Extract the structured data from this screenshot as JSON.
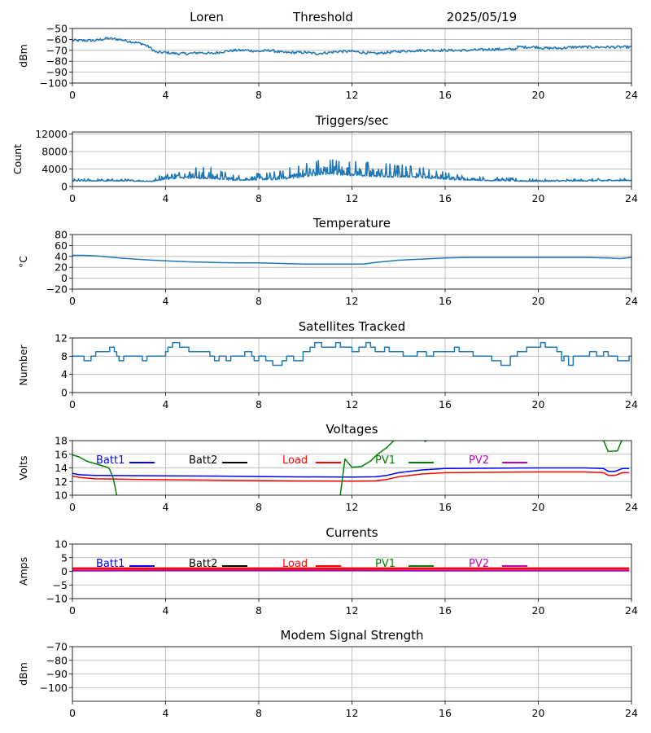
{
  "header": {
    "station": "Loren",
    "mode": "Threshold",
    "date": "2025/05/19"
  },
  "colors": {
    "series_default": "#1f77b4",
    "Batt1": "#0000ff",
    "Batt2": "#000000",
    "Load": "#ff0000",
    "PV1": "#008000",
    "PV2": "#bf00bf",
    "grid": "#b0b0b0"
  },
  "chart_data": [
    {
      "id": "signal",
      "type": "line",
      "title": "",
      "ylabel": "dBm",
      "xlim": [
        0,
        24
      ],
      "ylim": [
        -100,
        -50
      ],
      "xticks": [
        0,
        4,
        8,
        12,
        16,
        20,
        24
      ],
      "yticks": [
        -100,
        -90,
        -80,
        -70,
        -60,
        -50
      ],
      "grid": true,
      "noise": 1.2,
      "series": [
        {
          "x": [
            0,
            0.5,
            1,
            1.5,
            2,
            2.5,
            3,
            3.3,
            3.6,
            4,
            4.5,
            5,
            5.5,
            6,
            6.5,
            7,
            7.5,
            8,
            8.5,
            9,
            9.5,
            10,
            10.5,
            11,
            11.5,
            12,
            12.5,
            13,
            13.5,
            14,
            15,
            16,
            17,
            18,
            19,
            19.1,
            20,
            20.2,
            21,
            21.5,
            22,
            23,
            24
          ],
          "y": [
            -61,
            -61,
            -61,
            -59,
            -60,
            -62,
            -64,
            -67,
            -72,
            -72,
            -73,
            -73,
            -72,
            -73,
            -71,
            -70,
            -70,
            -71,
            -70,
            -72,
            -72,
            -72,
            -73,
            -72,
            -71,
            -71,
            -72,
            -73,
            -72,
            -71,
            -70,
            -70,
            -70,
            -69,
            -69,
            -67,
            -67,
            -68,
            -68,
            -67,
            -67,
            -67,
            -67
          ]
        }
      ]
    },
    {
      "id": "triggers",
      "type": "line",
      "title": "Triggers/sec",
      "ylabel": "Count",
      "xlim": [
        0,
        24
      ],
      "ylim": [
        0,
        12500
      ],
      "xticks": [
        0,
        4,
        8,
        12,
        16,
        20,
        24
      ],
      "yticks": [
        0,
        4000,
        8000,
        12000
      ],
      "grid": true,
      "spiky": true,
      "series": [
        {
          "x": [
            0,
            2,
            3.5,
            4,
            5,
            6,
            7,
            8,
            9,
            10,
            11,
            12,
            13,
            14,
            15,
            16,
            17,
            18,
            19,
            20,
            22,
            24
          ],
          "y": [
            1300,
            1300,
            1200,
            1800,
            2200,
            2000,
            1500,
            1600,
            1800,
            2600,
            3200,
            2800,
            2600,
            2400,
            2200,
            1800,
            1500,
            1400,
            1300,
            1200,
            1300,
            1400
          ],
          "amp": [
            300,
            300,
            300,
            1200,
            1700,
            1500,
            700,
            900,
            1200,
            2000,
            2200,
            2000,
            1900,
            1800,
            1500,
            1000,
            600,
            500,
            400,
            300,
            300,
            300
          ]
        }
      ]
    },
    {
      "id": "temperature",
      "type": "line",
      "title": "Temperature",
      "ylabel": "°C",
      "xlim": [
        0,
        24
      ],
      "ylim": [
        -20,
        80
      ],
      "xticks": [
        0,
        4,
        8,
        12,
        16,
        20,
        24
      ],
      "yticks": [
        -20,
        0,
        20,
        40,
        60,
        80
      ],
      "grid": true,
      "series": [
        {
          "x": [
            0,
            0.5,
            1,
            2,
            3,
            4,
            5,
            6,
            7,
            8,
            9,
            10,
            11,
            12,
            12.5,
            13,
            14,
            15,
            16,
            17,
            18,
            19,
            20,
            21,
            22,
            23,
            23.5,
            24
          ],
          "y": [
            42,
            42,
            41,
            37,
            34,
            32,
            30,
            29,
            28,
            28,
            27,
            26,
            26,
            26,
            26,
            29,
            33,
            35,
            37,
            38,
            38,
            38,
            38,
            38,
            38,
            37,
            36,
            38
          ]
        }
      ]
    },
    {
      "id": "satellites",
      "type": "step",
      "title": "Satellites Tracked",
      "ylabel": "Number",
      "xlim": [
        0,
        24
      ],
      "ylim": [
        0,
        12
      ],
      "xticks": [
        0,
        4,
        8,
        12,
        16,
        20,
        24
      ],
      "yticks": [
        0,
        4,
        8,
        12
      ],
      "grid": true,
      "series": [
        {
          "x": [
            0,
            0.3,
            0.5,
            0.8,
            1.0,
            1.5,
            1.6,
            1.8,
            1.9,
            2.0,
            2.2,
            2.8,
            3.0,
            3.2,
            4.0,
            4.1,
            4.3,
            4.6,
            5.0,
            5.4,
            5.9,
            6.1,
            6.3,
            6.6,
            6.8,
            7.0,
            7.4,
            7.7,
            7.8,
            8.0,
            8.2,
            8.3,
            8.6,
            9.0,
            9.2,
            9.5,
            9.9,
            10.2,
            10.4,
            10.7,
            11.3,
            11.5,
            12.0,
            12.3,
            12.6,
            12.8,
            13.0,
            13.4,
            13.6,
            13.8,
            14.2,
            14.8,
            15.2,
            15.5,
            16.0,
            16.4,
            16.6,
            16.8,
            17.2,
            17.5,
            18.0,
            18.4,
            18.8,
            19.1,
            19.5,
            19.9,
            20.1,
            20.3,
            20.8,
            21.0,
            21.1,
            21.3,
            21.5,
            21.9,
            22.2,
            22.5,
            22.8,
            23.0,
            23.4,
            23.9,
            24
          ],
          "y": [
            8,
            8,
            7,
            8,
            9,
            9,
            10,
            9,
            8,
            7,
            8,
            8,
            7,
            8,
            9,
            10,
            11,
            10,
            9,
            9,
            8,
            7,
            8,
            7,
            8,
            8,
            9,
            8,
            7,
            8,
            8,
            7,
            6,
            7,
            8,
            7,
            9,
            10,
            11,
            10,
            11,
            10,
            9,
            10,
            11,
            10,
            9,
            10,
            9,
            9,
            8,
            9,
            8,
            9,
            9,
            10,
            9,
            9,
            8,
            8,
            7,
            6,
            8,
            9,
            10,
            10,
            11,
            10,
            9,
            7,
            8,
            6,
            8,
            8,
            9,
            8,
            9,
            8,
            7,
            8,
            8
          ]
        }
      ]
    },
    {
      "id": "voltages",
      "type": "line",
      "title": "Voltages",
      "ylabel": "Volts",
      "xlim": [
        0,
        24
      ],
      "ylim": [
        10,
        18
      ],
      "xticks": [
        0,
        4,
        8,
        12,
        16,
        20,
        24
      ],
      "yticks": [
        10,
        12,
        14,
        16,
        18
      ],
      "grid": true,
      "legend_placement": "top",
      "legend": [
        {
          "name": "Batt1",
          "color": "#0000ff"
        },
        {
          "name": "Batt2",
          "color": "#000000"
        },
        {
          "name": "Load",
          "color": "#ff0000"
        },
        {
          "name": "PV1",
          "color": "#008000"
        },
        {
          "name": "PV2",
          "color": "#bf00bf"
        }
      ],
      "series": [
        {
          "name": "Batt1",
          "color": "#0000ff",
          "x": [
            0,
            0.3,
            1,
            3,
            6,
            9,
            12,
            13,
            13.5,
            14,
            15,
            16,
            18,
            20,
            22,
            22.8,
            23.0,
            23.3,
            23.6,
            23.9
          ],
          "y": [
            13.2,
            13.0,
            12.9,
            12.85,
            12.8,
            12.7,
            12.65,
            12.7,
            12.9,
            13.3,
            13.7,
            13.9,
            13.95,
            14.0,
            14.0,
            13.9,
            13.5,
            13.5,
            13.9,
            13.9
          ]
        },
        {
          "name": "Load",
          "color": "#ff0000",
          "x": [
            0,
            0.3,
            1,
            3,
            6,
            9,
            12,
            13,
            13.5,
            14,
            15,
            16,
            18,
            20,
            22,
            22.8,
            23.0,
            23.3,
            23.6,
            23.9
          ],
          "y": [
            12.8,
            12.6,
            12.4,
            12.3,
            12.2,
            12.1,
            12.05,
            12.1,
            12.3,
            12.7,
            13.1,
            13.3,
            13.35,
            13.4,
            13.4,
            13.3,
            12.9,
            12.9,
            13.3,
            13.3
          ]
        },
        {
          "name": "PV1",
          "color": "#008000",
          "x": [
            0,
            0.3,
            0.6,
            1,
            1.5,
            1.6,
            1.75,
            1.9
          ],
          "y": [
            15.9,
            15.6,
            15.0,
            14.6,
            14.1,
            13.8,
            12.5,
            10
          ]
        },
        {
          "name": "PV1",
          "color": "#008000",
          "x": [
            11.5,
            11.7,
            12.0,
            12.4,
            12.8,
            13.1,
            13.5,
            13.8,
            14.2
          ],
          "y": [
            10,
            15.3,
            14.1,
            14.2,
            15.0,
            16.0,
            17.0,
            18.0,
            18.5
          ]
        },
        {
          "name": "PV1",
          "color": "#008000",
          "x": [
            22.2,
            22.8,
            23.0,
            23.4,
            23.6
          ],
          "y": [
            18.5,
            18.0,
            16.4,
            16.5,
            18.2
          ]
        },
        {
          "name": "PV1",
          "color": "#008000",
          "x": [
            15.1,
            15.2
          ],
          "y": [
            17.9,
            17.9
          ]
        }
      ]
    },
    {
      "id": "currents",
      "type": "line",
      "title": "Currents",
      "ylabel": "Amps",
      "xlim": [
        0,
        24
      ],
      "ylim": [
        -10,
        10
      ],
      "xticks": [
        0,
        4,
        8,
        12,
        16,
        20,
        24
      ],
      "yticks": [
        -10,
        -5,
        0,
        5,
        10
      ],
      "grid": true,
      "legend_placement": "top",
      "legend": [
        {
          "name": "Batt1",
          "color": "#0000ff"
        },
        {
          "name": "Batt2",
          "color": "#000000"
        },
        {
          "name": "Load",
          "color": "#ff0000"
        },
        {
          "name": "PV1",
          "color": "#008000"
        },
        {
          "name": "PV2",
          "color": "#bf00bf"
        }
      ],
      "series": [
        {
          "name": "Load",
          "color": "#ff0000",
          "width": 3,
          "x": [
            0,
            4,
            8,
            12,
            16,
            20,
            23.9
          ],
          "y": [
            1.0,
            1.0,
            1.0,
            1.0,
            1.0,
            1.0,
            1.0
          ]
        },
        {
          "name": "Batt1",
          "color": "#0000ff",
          "width": 1.5,
          "x": [
            0,
            4,
            8,
            12,
            16,
            20,
            23.9
          ],
          "y": [
            0.2,
            0.3,
            0.3,
            0.3,
            0.2,
            0.2,
            0.2
          ]
        },
        {
          "name": "PV2",
          "color": "#bf00bf",
          "width": 1.5,
          "x": [
            0,
            4,
            8,
            12,
            16,
            20,
            23.9
          ],
          "y": [
            0.3,
            0.3,
            0.3,
            0.3,
            0.3,
            0.3,
            0.3
          ]
        }
      ]
    },
    {
      "id": "modem",
      "type": "line",
      "title": "Modem Signal Strength",
      "ylabel": "dBm",
      "xlim": [
        0,
        24
      ],
      "ylim": [
        -110,
        -70
      ],
      "xticks": [
        0,
        4,
        8,
        12,
        16,
        20,
        24
      ],
      "yticks": [
        -100,
        -90,
        -80,
        -70
      ],
      "grid": true,
      "series": []
    }
  ]
}
